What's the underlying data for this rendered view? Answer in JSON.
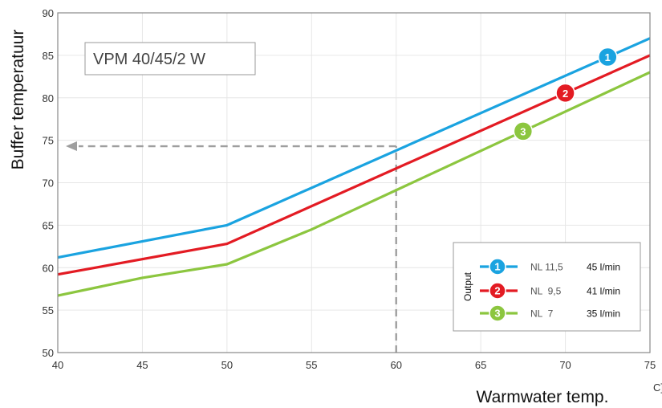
{
  "chart_data": {
    "type": "line",
    "xlabel": "Warmwater temp.",
    "ylabel": "Buffer temperatuur",
    "xlim": [
      40,
      75
    ],
    "ylim": [
      50,
      90
    ],
    "x_ticks": [
      "40",
      "45",
      "50",
      "55",
      "60",
      "65",
      "70",
      "75"
    ],
    "y_ticks": [
      "50",
      "55",
      "60",
      "65",
      "70",
      "75",
      "80",
      "85",
      "90"
    ],
    "grid": true,
    "product_label": "VPM 40/45/2 W",
    "clipped_unit_fragment": "C]",
    "series": [
      {
        "badge": "1",
        "color": "#1aa3e0",
        "x": [
          40,
          50,
          75
        ],
        "y": [
          61.2,
          65.0,
          87.0
        ],
        "legend_name": "NL 11,5",
        "legend_flow": "45 l/min"
      },
      {
        "badge": "2",
        "color": "#e31b23",
        "x": [
          40,
          50,
          75
        ],
        "y": [
          59.2,
          62.8,
          85.0
        ],
        "legend_name": "NL  9,5",
        "legend_flow": "41 l/min"
      },
      {
        "badge": "3",
        "color": "#8cc63f",
        "x": [
          40,
          45,
          50,
          55,
          75
        ],
        "y": [
          56.7,
          58.8,
          60.4,
          64.5,
          83.0
        ],
        "legend_name": "NL  7",
        "legend_flow": "35 l/min"
      }
    ],
    "legend": {
      "title": "Output",
      "placement": "bottom-right"
    },
    "badge_positions_x": [
      72.5,
      70.0,
      67.5
    ],
    "annotation": {
      "x": 60,
      "y": 74.3,
      "style": "dashed",
      "color": "#9e9e9e"
    }
  }
}
